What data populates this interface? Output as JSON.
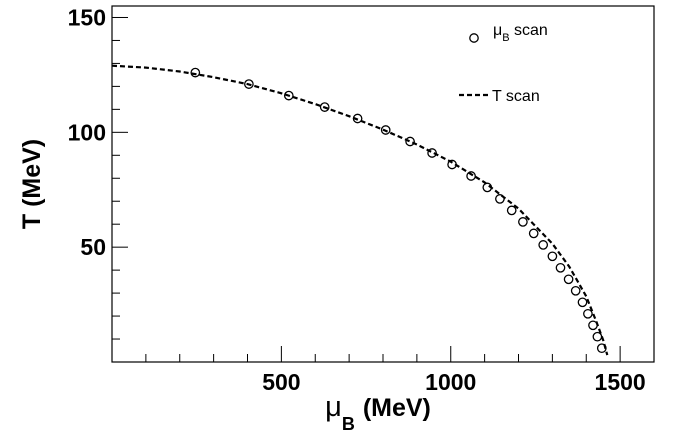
{
  "chart_data": {
    "type": "scatter",
    "xlabel": {
      "main": "μ",
      "sub": "B",
      "unit": "(MeV)"
    },
    "ylabel": "T (MeV)",
    "xlim": [
      0,
      1600
    ],
    "ylim": [
      0,
      155
    ],
    "x_ticks": [
      500,
      1000,
      1500
    ],
    "x_tick_labels": [
      "500",
      "1000",
      "1500"
    ],
    "y_ticks": [
      50,
      100,
      150
    ],
    "y_tick_labels": [
      "50",
      "100",
      "150"
    ],
    "grid": false,
    "legend_position": "top-right",
    "series": [
      {
        "name": "μB scan",
        "legend_main": "μ",
        "legend_sub": "B",
        "legend_rest": " scan",
        "marker": "open-circle",
        "x": [
          246,
          404,
          522,
          628,
          725,
          808,
          880,
          945,
          1004,
          1060,
          1108,
          1145,
          1180,
          1213,
          1245,
          1273,
          1300,
          1324,
          1348,
          1369,
          1389,
          1405,
          1420,
          1433,
          1446
        ],
        "y": [
          126,
          121,
          116,
          111,
          106,
          101,
          96,
          91,
          86,
          81,
          76,
          71,
          66,
          61,
          56,
          51,
          46,
          41,
          36,
          31,
          26,
          21,
          16,
          11,
          6
        ]
      },
      {
        "name": "T scan",
        "legend_main": "T scan",
        "line": "dashed",
        "x": [
          0,
          100,
          200,
          300,
          400,
          500,
          600,
          700,
          800,
          900,
          1000,
          1100,
          1200,
          1300,
          1350,
          1400,
          1430,
          1450,
          1462
        ],
        "y": [
          129,
          128.2,
          126.5,
          124.0,
          121.0,
          117.0,
          112.3,
          107.0,
          101.2,
          94.7,
          87.2,
          78.2,
          66.8,
          51.5,
          41.5,
          28.5,
          17.5,
          9.5,
          3.0
        ]
      }
    ]
  }
}
